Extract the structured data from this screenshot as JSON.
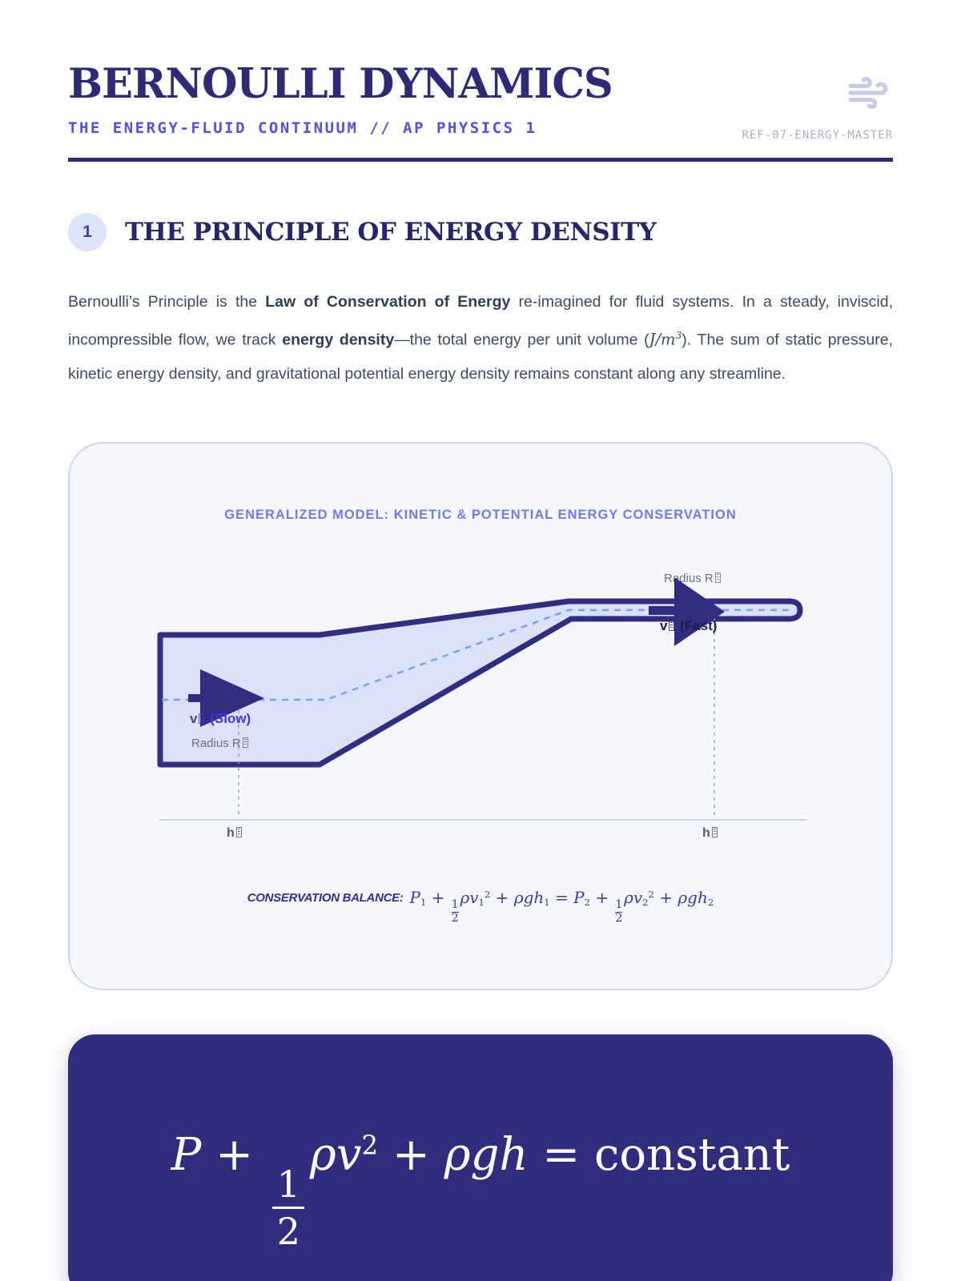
{
  "colors": {
    "brand_navy": "#2d2a78",
    "accent_indigo": "#5351e2",
    "badge_bg": "#dce4fc",
    "badge_text": "#4338ca",
    "panel_bg": "#f6f7fc",
    "panel_border": "#ccd4f1",
    "caption_blue": "#6e7cf3",
    "pipe_fill": "#dbe1f8",
    "pipe_stroke": "#312e81",
    "streamline_blue": "#6fa8f2",
    "guide_gray": "#9aa5b8",
    "equation_panel_bg": "#312d7e",
    "formula_indigo": "#3a3aa8",
    "muted_label": "#6b7280"
  },
  "header": {
    "title": "BERNOULLI DYNAMICS",
    "subtitle": "THE ENERGY-FLUID CONTINUUM // AP PHYSICS 1",
    "ref_code": "REF-07-ENERGY-MASTER",
    "icon": "wind-icon"
  },
  "section1": {
    "badge": "1",
    "title": "THE PRINCIPLE OF ENERGY DENSITY"
  },
  "intro": {
    "t1": "Bernoulli’s Principle is the ",
    "b1": "Law of Conservation of Energy",
    "t2": " re-imagined for fluid systems. In a steady, inviscid, incompressible flow, we track ",
    "b2": "energy density",
    "t3": "—the total energy per unit volume (",
    "math": "J/m",
    "math_sup": "3",
    "t4": "). The sum of static pressure, kinetic energy density, and gravitational potential energy density remains constant along any streamline."
  },
  "figure": {
    "caption": "GENERALIZED MODEL: KINETIC & POTENTIAL ENERGY CONSERVATION",
    "labels": {
      "radius2_prefix": "Radius R",
      "v2_prefix": "v",
      "v2_suffix": " (Fast)",
      "v1_prefix": "v",
      "v1_suffix": " (Slow)",
      "radius1_prefix": "Radius R",
      "h1_prefix": "h",
      "h2_prefix": "h"
    },
    "balance_label": "CONSERVATION BALANCE:",
    "balance_formula": [
      {
        "t": "i",
        "v": "P"
      },
      {
        "t": "sub",
        "v": "1"
      },
      {
        "t": "o",
        "v": " + "
      },
      {
        "t": "frac",
        "n": "1",
        "d": "2"
      },
      {
        "t": "i",
        "v": "ρv"
      },
      {
        "t": "sub",
        "v": "1"
      },
      {
        "t": "sup",
        "v": "2"
      },
      {
        "t": "o",
        "v": " + "
      },
      {
        "t": "i",
        "v": "ρgh"
      },
      {
        "t": "sub",
        "v": "1"
      },
      {
        "t": "o",
        "v": " = "
      },
      {
        "t": "i",
        "v": "P"
      },
      {
        "t": "sub",
        "v": "2"
      },
      {
        "t": "o",
        "v": " + "
      },
      {
        "t": "frac",
        "n": "1",
        "d": "2"
      },
      {
        "t": "i",
        "v": "ρv"
      },
      {
        "t": "sub",
        "v": "2"
      },
      {
        "t": "sup",
        "v": "2"
      },
      {
        "t": "o",
        "v": " + "
      },
      {
        "t": "i",
        "v": "ρgh"
      },
      {
        "t": "sub",
        "v": "2"
      }
    ]
  },
  "equation_panel": {
    "formula": [
      {
        "t": "i",
        "v": "P"
      },
      {
        "t": "o",
        "v": " + "
      },
      {
        "t": "frac",
        "n": "1",
        "d": "2"
      },
      {
        "t": "i",
        "v": "ρv"
      },
      {
        "t": "sup",
        "v": "2"
      },
      {
        "t": "o",
        "v": " + "
      },
      {
        "t": "i",
        "v": "ρgh"
      },
      {
        "t": "o",
        "v": " = "
      },
      {
        "t": "o",
        "v": "constant"
      }
    ]
  }
}
